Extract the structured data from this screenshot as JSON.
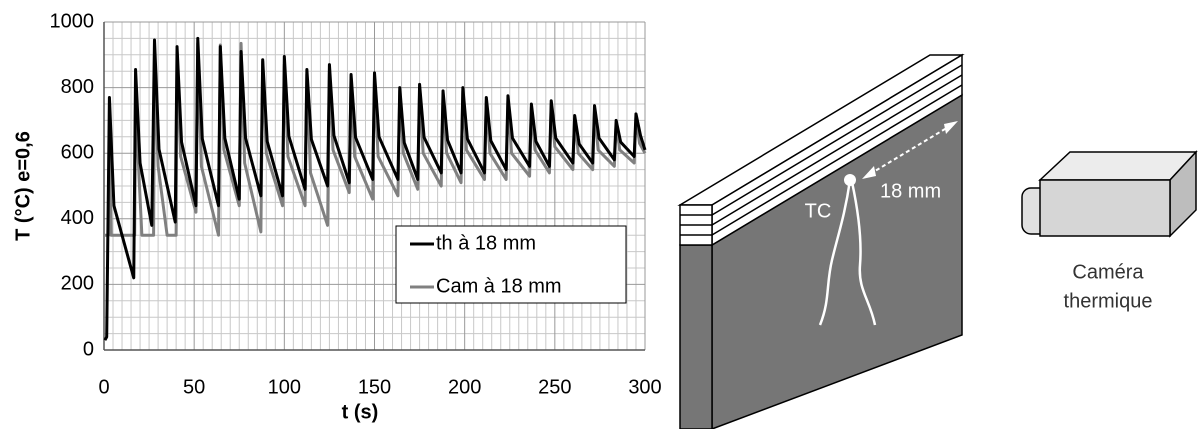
{
  "chart_data": {
    "type": "line",
    "xlabel": "t (s)",
    "ylabel": "T (°C) e=0,6",
    "xlim": [
      0,
      300
    ],
    "ylim": [
      0,
      1000
    ],
    "xticks": [
      0,
      50,
      100,
      150,
      200,
      250,
      300
    ],
    "yticks": [
      0,
      200,
      400,
      600,
      800,
      1000
    ],
    "grid": true,
    "legend": "lower right",
    "series": [
      {
        "name": "th à 18 mm",
        "color": "#000000",
        "x": [
          0.5,
          1.5,
          3,
          5.5,
          16.5,
          17.5,
          20,
          26.5,
          28,
          30.5,
          39.5,
          40.5,
          43,
          51,
          52,
          54.5,
          63.5,
          64.5,
          67,
          75,
          76,
          78.5,
          87,
          88,
          90.5,
          99,
          100,
          102.5,
          111.5,
          112.5,
          115,
          124,
          125,
          127.5,
          136,
          137,
          139.5,
          149,
          150,
          152.5,
          163,
          164,
          166.5,
          174,
          175,
          177.5,
          187,
          188,
          190.5,
          198,
          199,
          201.5,
          211,
          212,
          214.5,
          223,
          224,
          226.5,
          236,
          237,
          239.5,
          247,
          248,
          250.5,
          260,
          261,
          263.5,
          271,
          272,
          274.5,
          283,
          284,
          286.5,
          294,
          295,
          297.5,
          300
        ],
        "values": [
          30,
          40,
          770,
          440,
          220,
          855,
          570,
          380,
          945,
          612,
          390,
          925,
          634,
          440,
          950,
          644,
          440,
          925,
          646,
          460,
          910,
          646,
          470,
          885,
          636,
          470,
          895,
          652,
          490,
          855,
          642,
          500,
          870,
          654,
          510,
          840,
          648,
          520,
          845,
          650,
          520,
          800,
          632,
          520,
          810,
          648,
          540,
          790,
          640,
          540,
          800,
          644,
          540,
          770,
          638,
          550,
          775,
          646,
          560,
          750,
          636,
          560,
          760,
          646,
          570,
          715,
          628,
          570,
          745,
          646,
          580,
          700,
          634,
          590,
          720,
          654,
          610
        ]
      },
      {
        "name": "Cam à 18 mm",
        "color": "#808080",
        "x": [
          0,
          2.5,
          3,
          4,
          17,
          17.5,
          19.5,
          21,
          27.5,
          28,
          30,
          35,
          40,
          40.5,
          42.5,
          51,
          52,
          54,
          63.5,
          64.5,
          66.5,
          75,
          76,
          78,
          87,
          88,
          90,
          99,
          100,
          102,
          111.5,
          112.5,
          114.5,
          124,
          125,
          127,
          136,
          137,
          139,
          149,
          150,
          152,
          163,
          164,
          166,
          174,
          175,
          177,
          187,
          188,
          190,
          198,
          199,
          201,
          211,
          212,
          214,
          223,
          224,
          226,
          236,
          237,
          239,
          247,
          248,
          250,
          260,
          261,
          263,
          271,
          272,
          274,
          283,
          284,
          286,
          294,
          295,
          297,
          300
        ],
        "values": [
          350,
          350,
          650,
          350,
          350,
          780,
          520,
          350,
          350,
          900,
          560,
          350,
          350,
          910,
          590,
          420,
          935,
          560,
          350,
          930,
          610,
          440,
          935,
          570,
          360,
          880,
          600,
          440,
          870,
          590,
          440,
          840,
          540,
          380,
          850,
          610,
          480,
          830,
          590,
          460,
          830,
          590,
          470,
          790,
          600,
          490,
          790,
          600,
          500,
          775,
          600,
          510,
          790,
          610,
          520,
          760,
          600,
          520,
          760,
          600,
          530,
          740,
          610,
          540,
          750,
          620,
          550,
          705,
          600,
          550,
          730,
          610,
          560,
          690,
          610,
          570,
          710,
          630,
          600
        ]
      }
    ]
  },
  "diagram": {
    "labels": {
      "tc": "TC",
      "distance": "18 mm",
      "camera": [
        "Caméra",
        "thermique"
      ]
    }
  }
}
